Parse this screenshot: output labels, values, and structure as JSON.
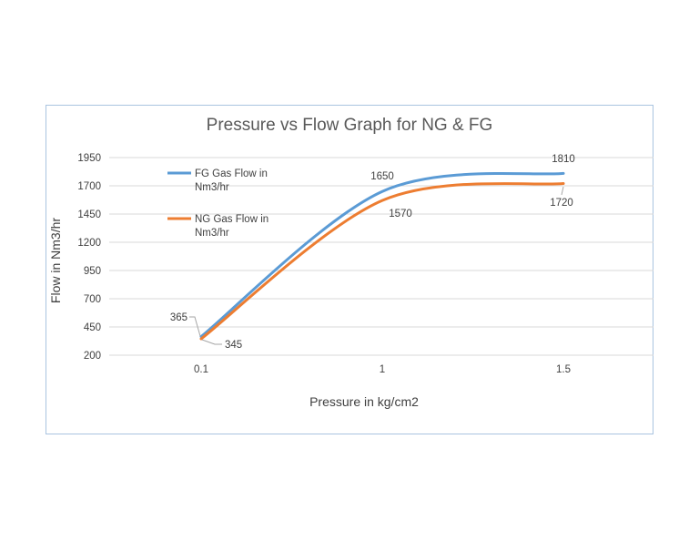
{
  "chart_data": {
    "type": "line",
    "title": "Pressure vs Flow Graph for NG & FG",
    "xlabel": "Pressure in kg/cm2",
    "ylabel": "Flow in Nm3/hr",
    "categories": [
      "0.1",
      "1",
      "1.5"
    ],
    "ylim": [
      200,
      1950
    ],
    "yticks": [
      200,
      450,
      700,
      950,
      1200,
      1450,
      1700,
      1950
    ],
    "grid": true,
    "legend": "top-left",
    "series": [
      {
        "name": "FG Gas Flow in Nm3/hr",
        "legend_lines": [
          "FG Gas Flow in",
          "Nm3/hr"
        ],
        "values": [
          365,
          1650,
          1810
        ],
        "labels": [
          "365",
          "1650",
          "1810"
        ],
        "color": "#5b9bd5"
      },
      {
        "name": "NG Gas Flow in Nm3/hr",
        "legend_lines": [
          "NG Gas Flow in",
          "Nm3/hr"
        ],
        "values": [
          345,
          1570,
          1720
        ],
        "labels": [
          "345",
          "1570",
          "1720"
        ],
        "color": "#ed7d31"
      }
    ]
  }
}
